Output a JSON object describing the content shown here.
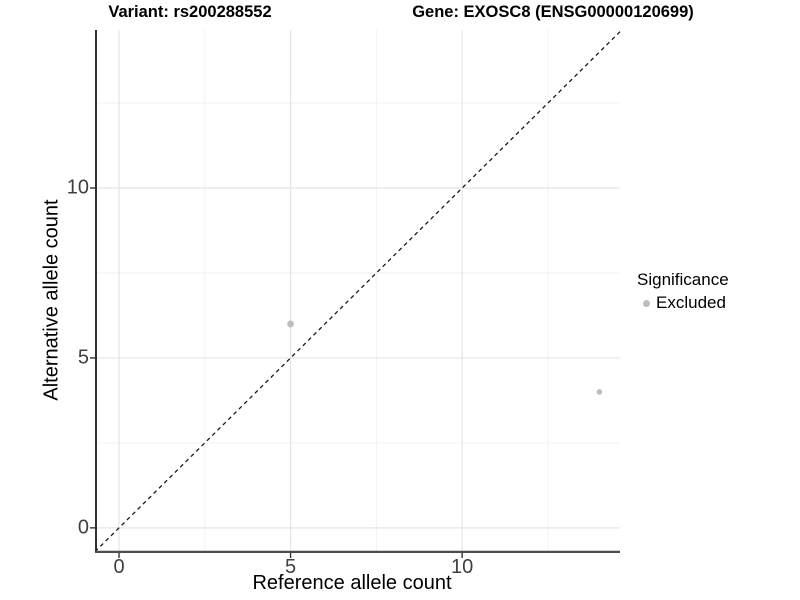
{
  "chart_data": {
    "type": "scatter",
    "titles": {
      "left": "Variant: rs200288552",
      "right": "Gene: EXOSC8 (ENSG00000120699)"
    },
    "xlabel": "Reference allele count",
    "ylabel": "Alternative allele count",
    "xlim": [
      -0.7,
      14.6
    ],
    "ylim": [
      -0.74,
      14.65
    ],
    "xticks": [
      0,
      5,
      10
    ],
    "yticks": [
      0,
      5,
      10
    ],
    "xminor": [
      2.5,
      7.5,
      12.5
    ],
    "yminor": [
      2.5,
      7.5,
      12.5
    ],
    "grid": true,
    "legend": {
      "title": "Significance",
      "position": "right",
      "items": [
        {
          "label": "Excluded",
          "color": "#bdbdbd"
        }
      ]
    },
    "identity_line": {
      "equation": "y = x",
      "style": "dashed",
      "color": "#1a1a1a"
    },
    "series": [
      {
        "name": "Excluded",
        "color": "#bdbdbd",
        "points": [
          {
            "x": 5,
            "y": 6,
            "r": 3.4
          },
          {
            "x": 14,
            "y": 4,
            "r": 2.8
          }
        ]
      }
    ],
    "style": {
      "panel_background": "#ffffff",
      "major_grid": "#e5e5e5",
      "minor_grid": "#f2f2f2",
      "axis_line_left": "#1a1a1a",
      "axis_line_bottom": "#4d4d4d",
      "tick_color": "#333333",
      "tick_length": 5
    }
  }
}
